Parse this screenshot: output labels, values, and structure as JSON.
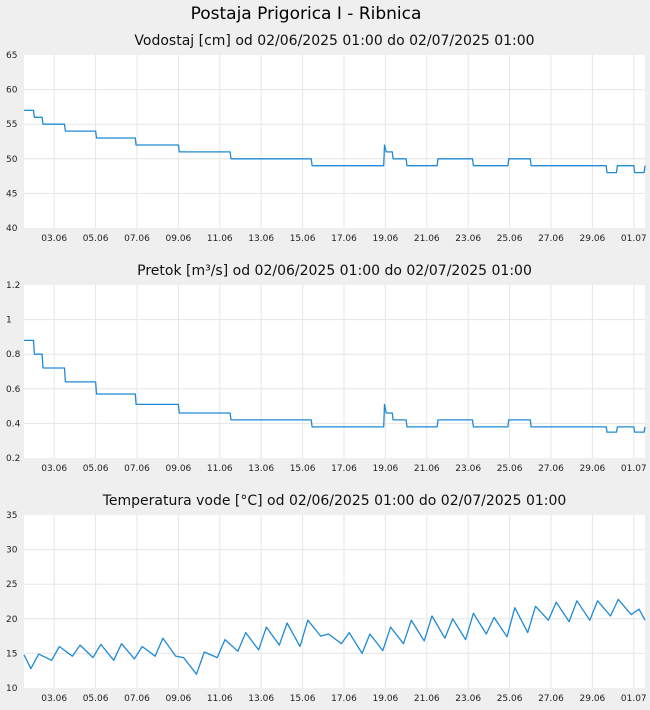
{
  "page": {
    "title": "Postaja Prigorica I - Ribnica",
    "colors": {
      "background": "#efefef",
      "plot_background": "#ffffff",
      "grid": "#e6e6e6",
      "series": "#1f8ad6"
    }
  },
  "chart_data": [
    {
      "type": "line",
      "title": "Vodostaj [cm] od 02/06/2025 01:00 do 02/07/2025 01:00",
      "xlabel": "",
      "ylabel": "",
      "xlim": [
        "2025-06-02 01:00",
        "2025-07-02 01:00"
      ],
      "ylim": [
        40,
        65
      ],
      "yticks": [
        "40",
        "45",
        "50",
        "55",
        "60",
        "65"
      ],
      "xticks": [
        "03.06",
        "05.06",
        "07.06",
        "09.06",
        "11.06",
        "13.06",
        "15.06",
        "17.06",
        "19.06",
        "21.06",
        "23.06",
        "25.06",
        "27.06",
        "29.06",
        "01.07"
      ],
      "grid": true,
      "series": [
        {
          "color": "#1f8ad6",
          "points": [
            [
              "2025-06-02 01:00",
              57
            ],
            [
              "2025-06-02 12:00",
              57
            ],
            [
              "2025-06-02 13:00",
              56
            ],
            [
              "2025-06-02 22:00",
              56
            ],
            [
              "2025-06-02 23:00",
              55
            ],
            [
              "2025-06-04 00:00",
              55
            ],
            [
              "2025-06-04 01:00",
              54
            ],
            [
              "2025-06-05 12:00",
              54
            ],
            [
              "2025-06-05 13:00",
              53
            ],
            [
              "2025-06-07 10:00",
              53
            ],
            [
              "2025-06-07 11:00",
              52
            ],
            [
              "2025-06-09 12:00",
              52
            ],
            [
              "2025-06-09 13:00",
              51
            ],
            [
              "2025-06-12 00:00",
              51
            ],
            [
              "2025-06-12 01:00",
              50
            ],
            [
              "2025-06-15 22:00",
              50
            ],
            [
              "2025-06-15 23:00",
              49
            ],
            [
              "2025-06-19 10:00",
              49
            ],
            [
              "2025-06-19 11:00",
              52
            ],
            [
              "2025-06-19 13:00",
              51
            ],
            [
              "2025-06-19 20:00",
              51
            ],
            [
              "2025-06-19 21:00",
              50
            ],
            [
              "2025-06-20 12:00",
              50
            ],
            [
              "2025-06-20 13:00",
              49
            ],
            [
              "2025-06-22 00:00",
              49
            ],
            [
              "2025-06-22 01:00",
              50
            ],
            [
              "2025-06-23 17:00",
              50
            ],
            [
              "2025-06-23 18:00",
              49
            ],
            [
              "2025-06-25 10:00",
              49
            ],
            [
              "2025-06-25 11:00",
              50
            ],
            [
              "2025-06-26 12:00",
              50
            ],
            [
              "2025-06-26 13:00",
              49
            ],
            [
              "2025-06-30 04:00",
              49
            ],
            [
              "2025-06-30 05:00",
              48
            ],
            [
              "2025-06-30 16:00",
              48
            ],
            [
              "2025-06-30 17:00",
              49
            ],
            [
              "2025-07-01 12:00",
              49
            ],
            [
              "2025-07-01 13:00",
              48
            ],
            [
              "2025-07-02 00:00",
              48
            ],
            [
              "2025-07-02 01:00",
              49
            ]
          ]
        }
      ]
    },
    {
      "type": "line",
      "title": "Pretok [m³/s] od 02/06/2025 01:00 do 02/07/2025 01:00",
      "xlabel": "",
      "ylabel": "",
      "xlim": [
        "2025-06-02 01:00",
        "2025-07-02 01:00"
      ],
      "ylim": [
        0.2,
        1.2
      ],
      "yticks": [
        "0.2",
        "0.4",
        "0.6",
        "0.8",
        "1",
        "1.2"
      ],
      "xticks": [
        "03.06",
        "05.06",
        "07.06",
        "09.06",
        "11.06",
        "13.06",
        "15.06",
        "17.06",
        "19.06",
        "21.06",
        "23.06",
        "25.06",
        "27.06",
        "29.06",
        "01.07"
      ],
      "grid": true,
      "series": [
        {
          "color": "#1f8ad6",
          "points": [
            [
              "2025-06-02 01:00",
              0.88
            ],
            [
              "2025-06-02 12:00",
              0.88
            ],
            [
              "2025-06-02 13:00",
              0.8
            ],
            [
              "2025-06-02 22:00",
              0.8
            ],
            [
              "2025-06-02 23:00",
              0.72
            ],
            [
              "2025-06-04 00:00",
              0.72
            ],
            [
              "2025-06-04 01:00",
              0.64
            ],
            [
              "2025-06-05 12:00",
              0.64
            ],
            [
              "2025-06-05 13:00",
              0.57
            ],
            [
              "2025-06-07 10:00",
              0.57
            ],
            [
              "2025-06-07 11:00",
              0.51
            ],
            [
              "2025-06-09 12:00",
              0.51
            ],
            [
              "2025-06-09 13:00",
              0.46
            ],
            [
              "2025-06-12 00:00",
              0.46
            ],
            [
              "2025-06-12 01:00",
              0.42
            ],
            [
              "2025-06-15 22:00",
              0.42
            ],
            [
              "2025-06-15 23:00",
              0.38
            ],
            [
              "2025-06-19 10:00",
              0.38
            ],
            [
              "2025-06-19 11:00",
              0.51
            ],
            [
              "2025-06-19 13:00",
              0.46
            ],
            [
              "2025-06-19 20:00",
              0.46
            ],
            [
              "2025-06-19 21:00",
              0.42
            ],
            [
              "2025-06-20 12:00",
              0.42
            ],
            [
              "2025-06-20 13:00",
              0.38
            ],
            [
              "2025-06-22 00:00",
              0.38
            ],
            [
              "2025-06-22 01:00",
              0.42
            ],
            [
              "2025-06-23 17:00",
              0.42
            ],
            [
              "2025-06-23 18:00",
              0.38
            ],
            [
              "2025-06-25 10:00",
              0.38
            ],
            [
              "2025-06-25 11:00",
              0.42
            ],
            [
              "2025-06-26 12:00",
              0.42
            ],
            [
              "2025-06-26 13:00",
              0.38
            ],
            [
              "2025-06-30 04:00",
              0.38
            ],
            [
              "2025-06-30 05:00",
              0.35
            ],
            [
              "2025-06-30 16:00",
              0.35
            ],
            [
              "2025-06-30 17:00",
              0.38
            ],
            [
              "2025-07-01 12:00",
              0.38
            ],
            [
              "2025-07-01 13:00",
              0.35
            ],
            [
              "2025-07-02 00:00",
              0.35
            ],
            [
              "2025-07-02 01:00",
              0.38
            ]
          ]
        }
      ]
    },
    {
      "type": "line",
      "title": "Temperatura vode [°C] od 02/06/2025 01:00 do 02/07/2025 01:00",
      "xlabel": "",
      "ylabel": "",
      "xlim": [
        "2025-06-02 01:00",
        "2025-07-02 01:00"
      ],
      "ylim": [
        10,
        35
      ],
      "yticks": [
        "10",
        "15",
        "20",
        "25",
        "30",
        "35"
      ],
      "xticks": [
        "03.06",
        "05.06",
        "07.06",
        "09.06",
        "11.06",
        "13.06",
        "15.06",
        "17.06",
        "19.06",
        "21.06",
        "23.06",
        "25.06",
        "27.06",
        "29.06",
        "01.07"
      ],
      "grid": true,
      "series": [
        {
          "color": "#1f8ad6",
          "points": [
            [
              "2025-06-02 01:00",
              14.8
            ],
            [
              "2025-06-02 09:00",
              12.8
            ],
            [
              "2025-06-02 18:00",
              14.9
            ],
            [
              "2025-06-03 09:00",
              14.0
            ],
            [
              "2025-06-03 18:00",
              16.0
            ],
            [
              "2025-06-04 09:00",
              14.6
            ],
            [
              "2025-06-04 18:00",
              16.2
            ],
            [
              "2025-06-05 09:00",
              14.4
            ],
            [
              "2025-06-05 18:00",
              16.3
            ],
            [
              "2025-06-06 09:00",
              14.0
            ],
            [
              "2025-06-06 18:00",
              16.4
            ],
            [
              "2025-06-07 09:00",
              14.2
            ],
            [
              "2025-06-07 18:00",
              16.0
            ],
            [
              "2025-06-08 09:00",
              14.6
            ],
            [
              "2025-06-08 18:00",
              17.2
            ],
            [
              "2025-06-09 09:00",
              14.6
            ],
            [
              "2025-06-09 18:00",
              14.4
            ],
            [
              "2025-06-10 09:00",
              12.0
            ],
            [
              "2025-06-10 18:00",
              15.2
            ],
            [
              "2025-06-11 09:00",
              14.4
            ],
            [
              "2025-06-11 18:00",
              17.0
            ],
            [
              "2025-06-12 09:00",
              15.3
            ],
            [
              "2025-06-12 18:00",
              18.0
            ],
            [
              "2025-06-13 09:00",
              15.5
            ],
            [
              "2025-06-13 18:00",
              18.8
            ],
            [
              "2025-06-14 09:00",
              16.2
            ],
            [
              "2025-06-14 18:00",
              19.4
            ],
            [
              "2025-06-15 09:00",
              16.0
            ],
            [
              "2025-06-15 18:00",
              19.8
            ],
            [
              "2025-06-16 09:00",
              17.5
            ],
            [
              "2025-06-16 18:00",
              17.8
            ],
            [
              "2025-06-17 09:00",
              16.4
            ],
            [
              "2025-06-17 18:00",
              18.0
            ],
            [
              "2025-06-18 09:00",
              15.0
            ],
            [
              "2025-06-18 18:00",
              17.8
            ],
            [
              "2025-06-19 09:00",
              15.4
            ],
            [
              "2025-06-19 18:00",
              18.8
            ],
            [
              "2025-06-20 09:00",
              16.4
            ],
            [
              "2025-06-20 18:00",
              19.8
            ],
            [
              "2025-06-21 09:00",
              16.8
            ],
            [
              "2025-06-21 18:00",
              20.4
            ],
            [
              "2025-06-22 09:00",
              17.2
            ],
            [
              "2025-06-22 18:00",
              20.0
            ],
            [
              "2025-06-23 09:00",
              17.0
            ],
            [
              "2025-06-23 18:00",
              20.8
            ],
            [
              "2025-06-24 09:00",
              17.8
            ],
            [
              "2025-06-24 18:00",
              20.2
            ],
            [
              "2025-06-25 09:00",
              17.4
            ],
            [
              "2025-06-25 18:00",
              21.6
            ],
            [
              "2025-06-26 09:00",
              18.0
            ],
            [
              "2025-06-26 18:00",
              21.8
            ],
            [
              "2025-06-27 09:00",
              19.8
            ],
            [
              "2025-06-27 18:00",
              22.4
            ],
            [
              "2025-06-28 09:00",
              19.6
            ],
            [
              "2025-06-28 18:00",
              22.6
            ],
            [
              "2025-06-29 09:00",
              19.8
            ],
            [
              "2025-06-29 18:00",
              22.6
            ],
            [
              "2025-06-30 09:00",
              20.4
            ],
            [
              "2025-06-30 18:00",
              22.8
            ],
            [
              "2025-07-01 09:00",
              20.6
            ],
            [
              "2025-07-01 18:00",
              21.4
            ],
            [
              "2025-07-02 01:00",
              19.8
            ]
          ]
        }
      ]
    }
  ]
}
